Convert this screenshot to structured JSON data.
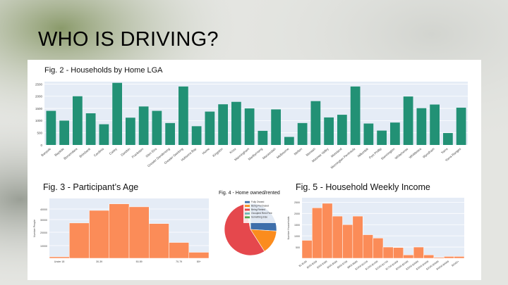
{
  "slide": {
    "title": "WHO IS DRIVING?"
  },
  "colors": {
    "teal": "#229175",
    "orange": "#fb8c58",
    "plot_bg": "#e5ecf6"
  },
  "chart_data": [
    {
      "id": "fig2",
      "type": "bar",
      "title": "Fig. 2 - Households by Home LGA",
      "xlabel": "",
      "ylabel": "",
      "ylim": [
        0,
        2600
      ],
      "yticks": [
        0,
        500,
        1000,
        1500,
        2000,
        2500
      ],
      "grid": true,
      "color": "#229175",
      "categories": [
        "Banyule",
        "Bayside",
        "Boroondara",
        "Brimbank",
        "Cardinia",
        "Casey",
        "Darebin",
        "Frankston",
        "Glen Eira",
        "Greater Dandenong",
        "Greater Geelong",
        "Hobsons Bay",
        "Hume",
        "Kingston",
        "Knox",
        "Manningham",
        "Maribyrnong",
        "Maroondah",
        "Melbourne",
        "Melton",
        "Monash",
        "Moonee Valley",
        "Moreland",
        "Mornington Peninsula",
        "Nillumbik",
        "Port Phillip",
        "Stonnington",
        "Whitehorse",
        "Whittlesea",
        "Wyndham",
        "Yarra",
        "Yarra Ranges"
      ],
      "values": [
        1400,
        1000,
        2000,
        1300,
        850,
        2550,
        1120,
        1580,
        1400,
        900,
        2400,
        770,
        1370,
        1670,
        1770,
        1500,
        580,
        1460,
        330,
        900,
        1800,
        1130,
        1240,
        2400,
        880,
        590,
        920,
        1990,
        1510,
        1660,
        490,
        1530
      ]
    },
    {
      "id": "fig3",
      "type": "bar",
      "title": "Fig. 3 - Participant’s Age",
      "xlabel": "",
      "ylabel": "Number People",
      "ylim": [
        0,
        5000
      ],
      "yticks": [
        10000,
        20000,
        30000,
        40000
      ],
      "ytick_labels": [
        "10000",
        "20000",
        "30000",
        "40000"
      ],
      "grid": true,
      "color": "#fb8c58",
      "categories": [
        "Under 18",
        "18-29",
        "30-39",
        "40-49",
        "50-59",
        "60-69",
        "70-79",
        "80+"
      ],
      "xtick_labels": [
        "Under 18",
        "",
        "30-39",
        "",
        "50-59",
        "",
        "70-79",
        "80+"
      ],
      "values": [
        120,
        2950,
        4000,
        4550,
        4300,
        2900,
        1320,
        500
      ]
    },
    {
      "id": "fig4",
      "type": "pie",
      "title": "Fig. 4 - Home owned/rented",
      "legend_position": "top-right",
      "labels": [
        "Fully Owned",
        "Being Purchased",
        "Being Rented",
        "Occupied Rent-Free",
        "Something Else"
      ],
      "values": [
        26,
        15,
        56,
        1.5,
        1.5
      ],
      "colors": [
        "#3e6fab",
        "#fb8c1e",
        "#e5484d",
        "#6fb7b4",
        "#56a84f"
      ]
    },
    {
      "id": "fig5",
      "type": "bar",
      "title": "Fig. 5 - Household Weekly Income",
      "xlabel": "",
      "ylabel": "Number Households",
      "ylim": [
        0,
        2700
      ],
      "yticks": [
        500,
        1000,
        1500,
        2000,
        2500
      ],
      "grid": true,
      "color": "#fb8c58",
      "categories": [
        "$1-$199",
        "$200-$299",
        "$300-$399",
        "$400-$599",
        "$600-$799",
        "$800-$999",
        "$1000-$1249",
        "$1250-$1499",
        "$1500-$1749",
        "$1750-$1999",
        "$2000-$2499",
        "$2500-$2999",
        "$3000-$3499",
        "$3500-$3999",
        "$4000-$4999",
        "$5000+"
      ],
      "values": [
        800,
        2250,
        2450,
        1880,
        1500,
        1880,
        1050,
        900,
        500,
        480,
        150,
        500,
        150,
        40,
        80,
        80
      ]
    }
  ]
}
